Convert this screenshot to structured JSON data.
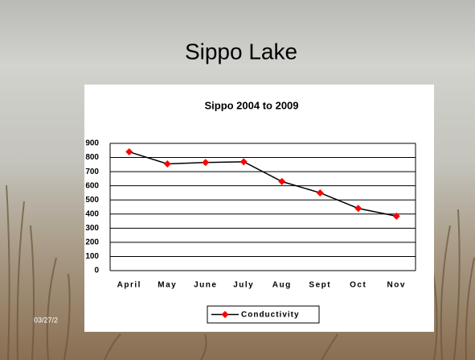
{
  "slide_title": "Sippo Lake",
  "footer_date": "03/27/2",
  "chart_data": {
    "type": "line",
    "title": "Sippo 2004 to 2009",
    "categories": [
      "April",
      "May",
      "June",
      "July",
      "Aug",
      "Sept",
      "Oct",
      "Nov"
    ],
    "series": [
      {
        "name": "Conductivity",
        "color": "#ff0000",
        "values": [
          840,
          755,
          765,
          770,
          630,
          550,
          440,
          385
        ]
      }
    ],
    "ylim": [
      0,
      900
    ],
    "yticks": [
      0,
      100,
      200,
      300,
      400,
      500,
      600,
      700,
      800,
      900
    ],
    "grid": true
  }
}
